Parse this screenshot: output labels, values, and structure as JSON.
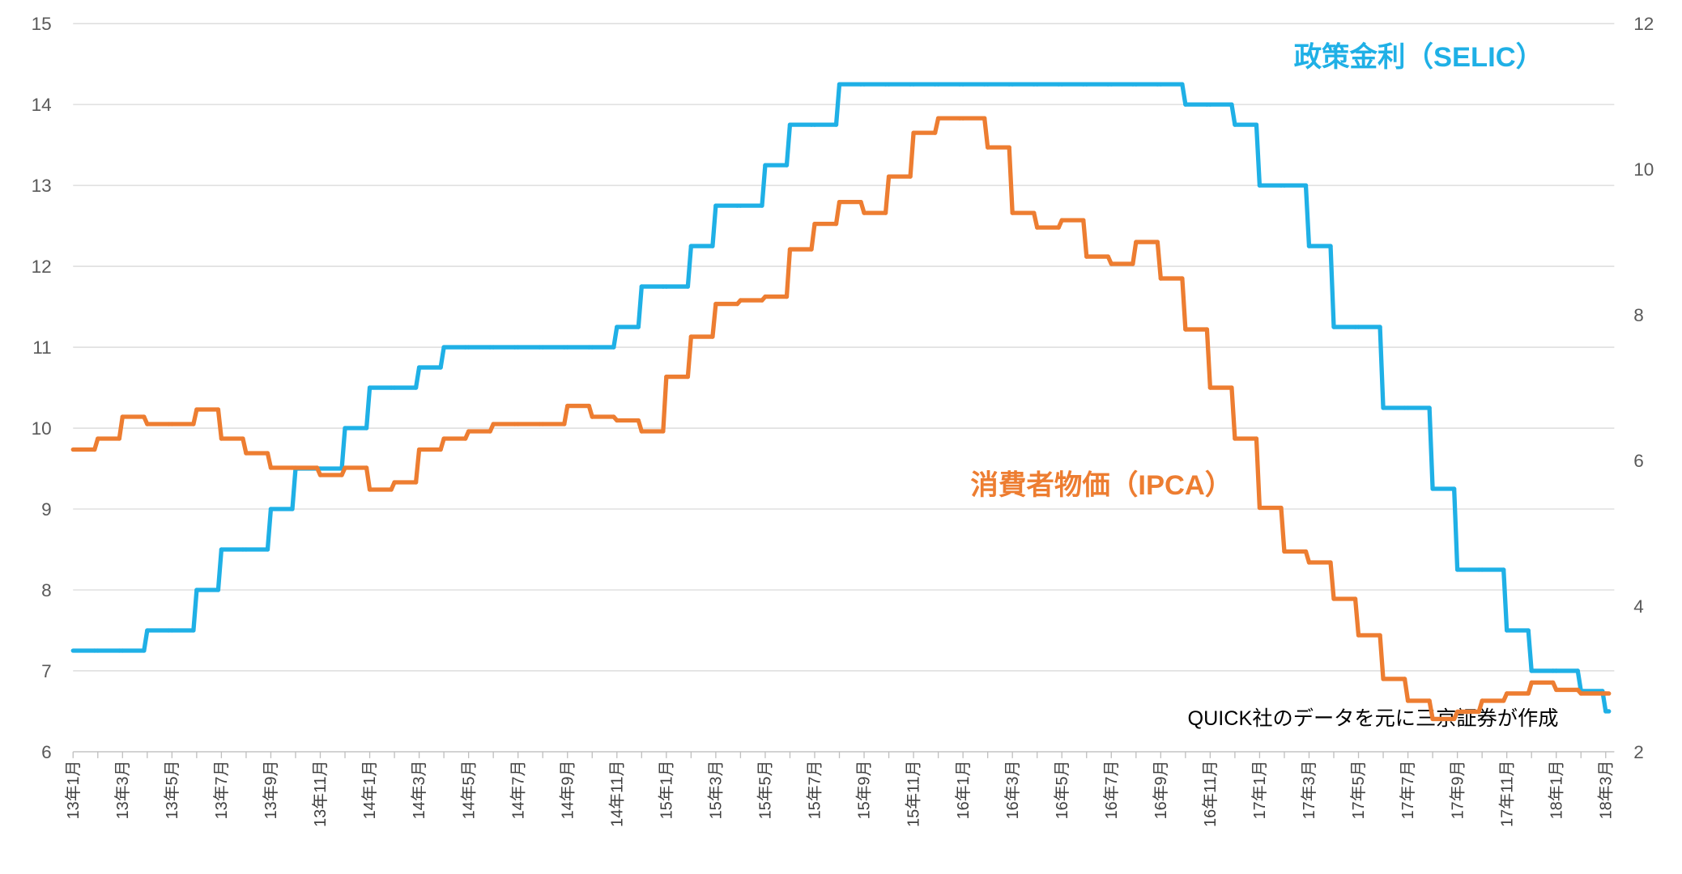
{
  "chart_data": {
    "type": "line",
    "categories": [
      "13年1月",
      null,
      "13年3月",
      null,
      "13年5月",
      null,
      "13年7月",
      null,
      "13年9月",
      null,
      "13年11月",
      null,
      "14年1月",
      null,
      "14年3月",
      null,
      "14年5月",
      null,
      "14年7月",
      null,
      "14年9月",
      null,
      "14年11月",
      null,
      "15年1月",
      null,
      "15年3月",
      null,
      "15年5月",
      null,
      "15年7月",
      null,
      "15年9月",
      null,
      "15年11月",
      null,
      "16年1月",
      null,
      "16年3月",
      null,
      "16年5月",
      null,
      "16年7月",
      null,
      "16年9月",
      null,
      "16年11月",
      null,
      "17年1月",
      null,
      "17年3月",
      null,
      "17年5月",
      null,
      "17年7月",
      null,
      "17年9月",
      null,
      "17年11月",
      null,
      "18年1月",
      null,
      "18年3月"
    ],
    "series": [
      {
        "name": "政策金利（SELIC）",
        "color": "#1fb0e6",
        "axis": "y",
        "values": [
          7.25,
          7.25,
          7.25,
          7.5,
          7.5,
          8.0,
          8.5,
          8.5,
          9.0,
          9.5,
          9.5,
          10.0,
          10.5,
          10.5,
          10.75,
          11.0,
          11.0,
          11.0,
          11.0,
          11.0,
          11.0,
          11.0,
          11.25,
          11.75,
          11.75,
          12.25,
          12.75,
          12.75,
          13.25,
          13.75,
          13.75,
          14.25,
          14.25,
          14.25,
          14.25,
          14.25,
          14.25,
          14.25,
          14.25,
          14.25,
          14.25,
          14.25,
          14.25,
          14.25,
          14.25,
          14.0,
          14.0,
          13.75,
          13.0,
          13.0,
          12.25,
          11.25,
          11.25,
          10.25,
          10.25,
          9.25,
          8.25,
          8.25,
          7.5,
          7.0,
          7.0,
          6.75,
          6.5
        ]
      },
      {
        "name": "消費者物価（IPCA）",
        "color": "#ed7d31",
        "axis": "y2",
        "values": [
          6.15,
          6.3,
          6.6,
          6.5,
          6.5,
          6.7,
          6.3,
          6.1,
          5.9,
          5.9,
          5.8,
          5.9,
          5.6,
          5.7,
          6.15,
          6.3,
          6.4,
          6.5,
          6.5,
          6.5,
          6.75,
          6.6,
          6.55,
          6.4,
          7.15,
          7.7,
          8.15,
          8.2,
          8.25,
          8.9,
          9.25,
          9.55,
          9.4,
          9.9,
          10.5,
          10.7,
          10.7,
          10.3,
          9.4,
          9.2,
          9.3,
          8.8,
          8.7,
          9.0,
          8.5,
          7.8,
          7.0,
          6.3,
          5.35,
          4.75,
          4.6,
          4.1,
          3.6,
          3.0,
          2.7,
          2.45,
          2.55,
          2.7,
          2.8,
          2.95,
          2.85,
          2.8,
          2.8
        ]
      }
    ],
    "ylim": [
      6,
      15
    ],
    "yticks": [
      6,
      7,
      8,
      9,
      10,
      11,
      12,
      13,
      14,
      15
    ],
    "y2lim": [
      2,
      12
    ],
    "y2ticks": [
      2,
      4,
      6,
      8,
      10,
      12
    ],
    "grid": true,
    "annotation": "QUICK社のデータを元に三京証券が作成"
  }
}
